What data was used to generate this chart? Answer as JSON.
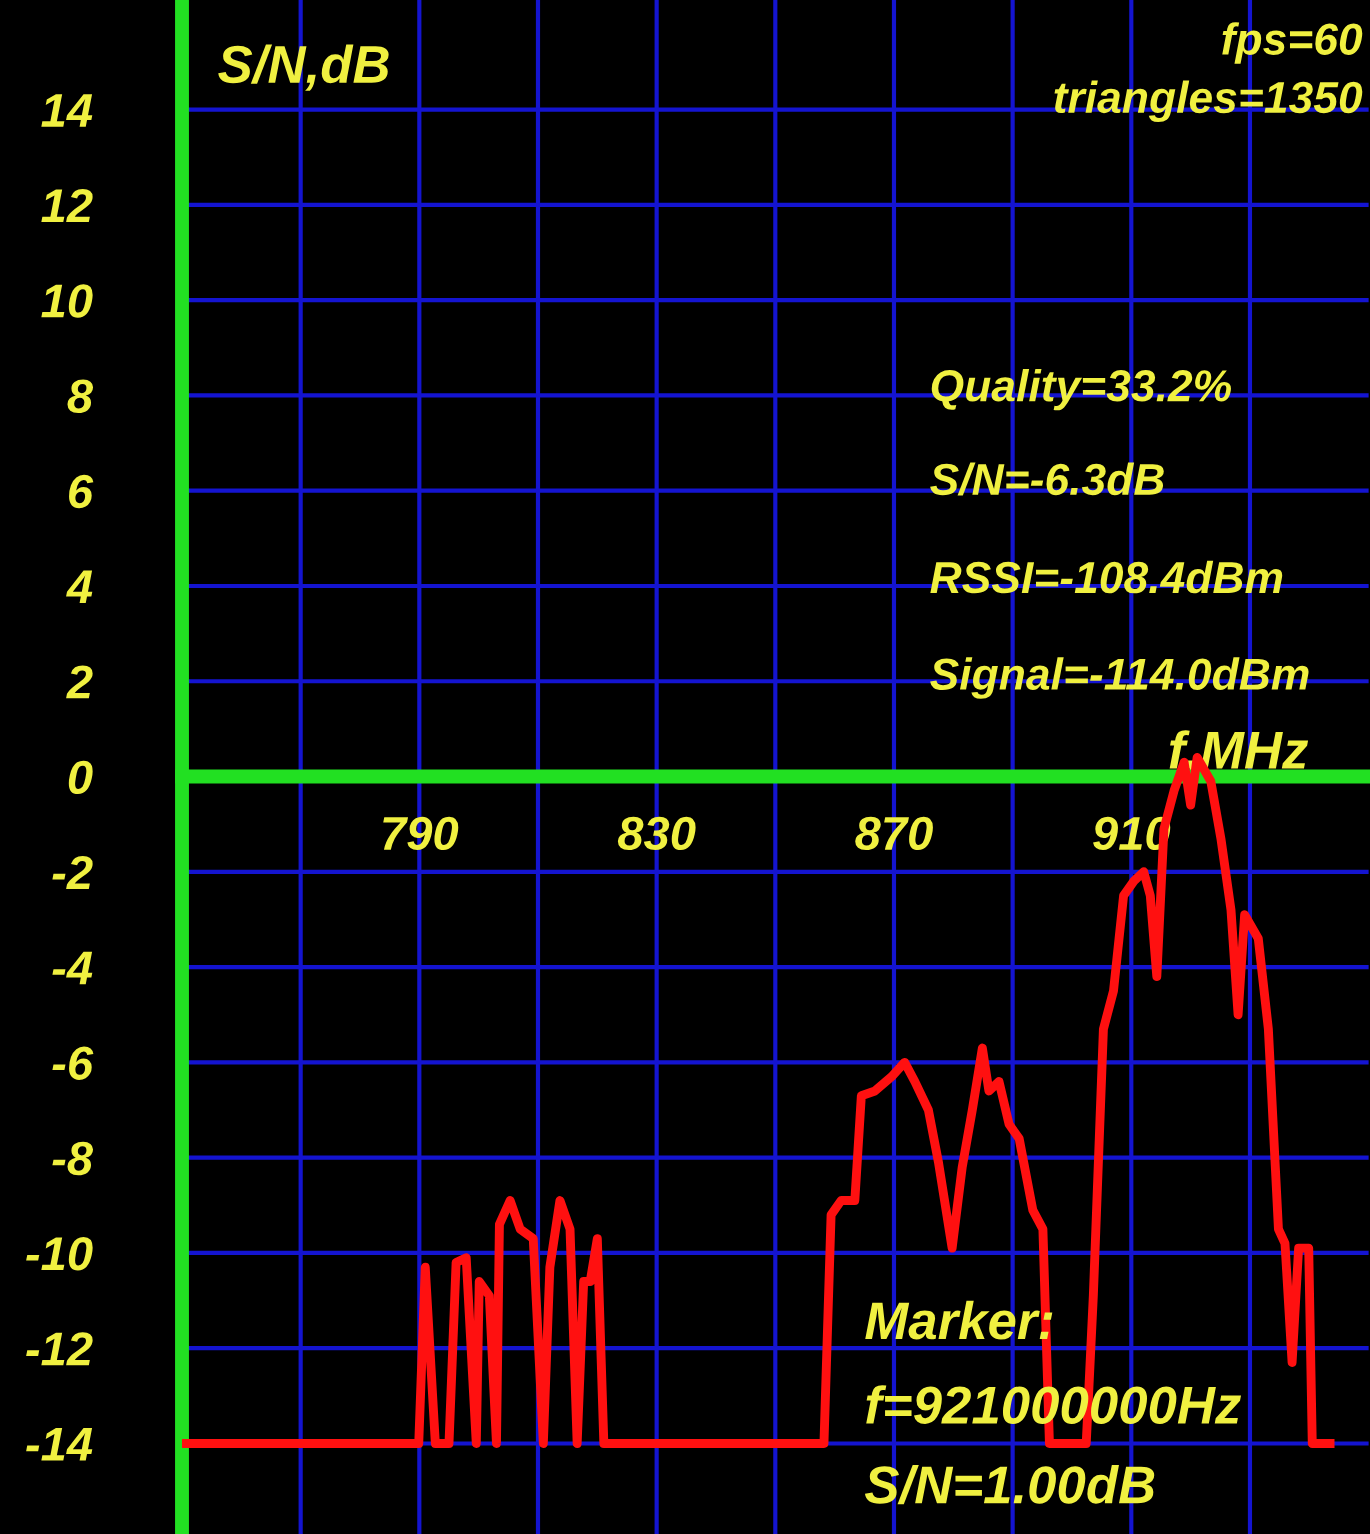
{
  "chart_data": {
    "type": "line",
    "xlabel": "f,MHz",
    "ylabel": "S/N,dB",
    "xlim": [
      750,
      950
    ],
    "ylim": [
      -15.9,
      16.3
    ],
    "xticks": [
      {
        "value": 770,
        "label": null
      },
      790,
      {
        "value": 810,
        "label": null
      },
      830,
      {
        "value": 850,
        "label": null
      },
      870,
      {
        "value": 890,
        "label": null
      },
      910,
      {
        "value": 930,
        "label": null
      }
    ],
    "yticks": [
      -14,
      -12,
      -10,
      -8,
      -6,
      -4,
      -2,
      0,
      2,
      4,
      6,
      8,
      10,
      12,
      14
    ],
    "grid": true,
    "legend": false,
    "marker": "none",
    "line_style": "solid",
    "series": [
      {
        "color": "#ff1010",
        "x": [
          750,
          789.9,
          791.0,
          792.7,
          795.0,
          796.2,
          797.9,
          799.6,
          800.1,
          801.8,
          803.0,
          803.5,
          805.3,
          807.0,
          809.2,
          810.9,
          812.0,
          813.7,
          815.4,
          816.6,
          817.7,
          818.8,
          820.0,
          821.1,
          858.2,
          859.4,
          861.1,
          863.4,
          864.5,
          866.8,
          869.6,
          871.8,
          873.5,
          875.8,
          877.5,
          879.8,
          881.5,
          883.2,
          884.9,
          886.0,
          887.7,
          889.4,
          891.1,
          893.4,
          895.1,
          896.2,
          902.4,
          903.6,
          905.3,
          907.0,
          908.7,
          910.4,
          912.1,
          913.2,
          914.3,
          915.5,
          917.2,
          918.9,
          920.0,
          921.1,
          923.4,
          925.1,
          926.8,
          928.0,
          929.1,
          931.4,
          933.1,
          934.8,
          935.9,
          937.1,
          938.2,
          939.9,
          940.5,
          943.5
        ],
        "values": [
          -14,
          -14,
          -10.3,
          -14,
          -14,
          -10.2,
          -10.1,
          -14,
          -10.6,
          -10.9,
          -14,
          -9.4,
          -8.9,
          -9.5,
          -9.7,
          -14,
          -10.3,
          -8.9,
          -9.5,
          -14,
          -10.6,
          -10.6,
          -9.7,
          -14,
          -14,
          -9.2,
          -8.9,
          -8.9,
          -6.7,
          -6.6,
          -6.3,
          -6.0,
          -6.4,
          -7.0,
          -8.1,
          -9.9,
          -8.2,
          -7.0,
          -5.7,
          -6.6,
          -6.4,
          -7.3,
          -7.6,
          -9.1,
          -9.5,
          -14,
          -14,
          -10.9,
          -5.3,
          -4.5,
          -2.5,
          -2.2,
          -2.0,
          -2.5,
          -4.2,
          -1.1,
          -0.3,
          0.3,
          -0.6,
          0.4,
          -0.1,
          -1.3,
          -2.8,
          -5.0,
          -2.9,
          -3.4,
          -5.3,
          -9.5,
          -9.8,
          -12.3,
          -9.9,
          -9.9,
          -14,
          -14
        ]
      }
    ],
    "annotations": [
      "fps=60",
      "triangles=1350",
      "Quality=33.2%",
      "S/N=-6.3dB",
      "RSSI=-108.4dBm",
      "Signal=-114.0dBm",
      "Marker:",
      "f=921000000Hz",
      "S/N=1.00dB"
    ]
  }
}
